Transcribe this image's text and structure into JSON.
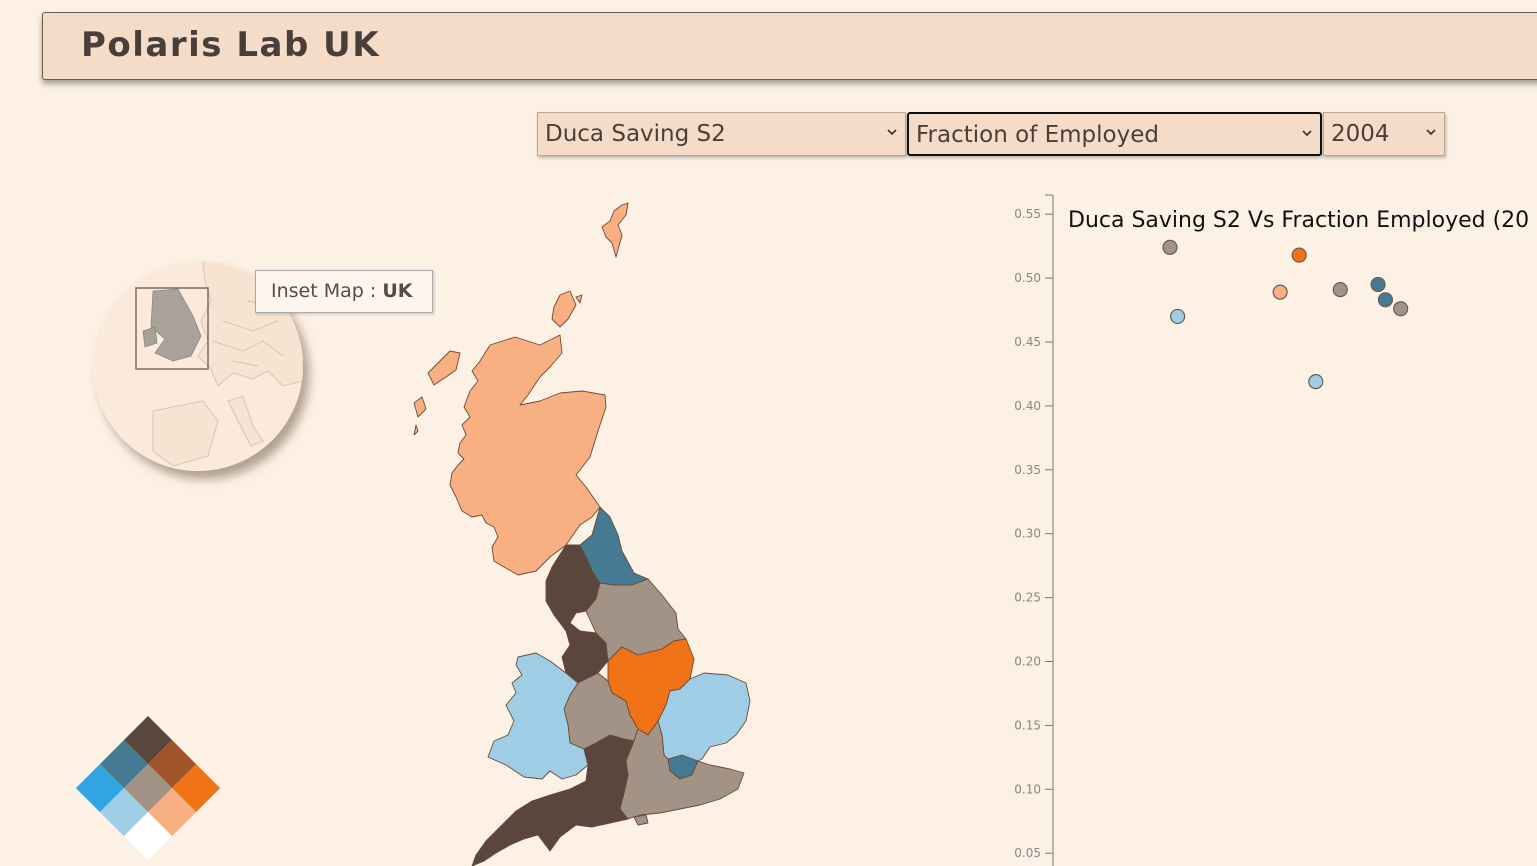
{
  "header": {
    "title": "Polaris Lab UK"
  },
  "controls": {
    "dataset": {
      "value": "Duca Saving S2"
    },
    "variable": {
      "value": "Fraction of Employed"
    },
    "year": {
      "value": "2004"
    }
  },
  "inset": {
    "label_prefix": "Inset Map : ",
    "label_region": "UK"
  },
  "colors": {
    "background": "#fdf1e5",
    "header_bg": "#f4dcc8",
    "dark_brown": "#5a463c",
    "steel_blue": "#457a93",
    "sienna": "#a0552b",
    "bright_blue": "#2fa6e2",
    "taupe": "#a39286",
    "orange": "#f07417",
    "light_blue": "#9fcde6",
    "peach": "#f8b083",
    "white": "#ffffff"
  },
  "map": {
    "regions": [
      {
        "name": "Scotland",
        "color": "#f8b083"
      },
      {
        "name": "North East",
        "color": "#457a93"
      },
      {
        "name": "North West",
        "color": "#5a463c"
      },
      {
        "name": "Yorkshire and the Humber",
        "color": "#a39286"
      },
      {
        "name": "East Midlands",
        "color": "#f07417"
      },
      {
        "name": "West Midlands",
        "color": "#a39286"
      },
      {
        "name": "Wales",
        "color": "#9fcde6"
      },
      {
        "name": "East of England",
        "color": "#9fcde6"
      },
      {
        "name": "London",
        "color": "#457a93"
      },
      {
        "name": "South East",
        "color": "#a39286"
      },
      {
        "name": "South West",
        "color": "#5a463c"
      },
      {
        "name": "Shetland",
        "color": "#f8b083"
      },
      {
        "name": "Orkney",
        "color": "#f8b083"
      }
    ]
  },
  "legend": {
    "cells": [
      "#5a463c",
      "#457a93",
      "#a0552b",
      "#2fa6e2",
      "#a39286",
      "#f07417",
      "#9fcde6",
      "#f8b083",
      "#ffffff"
    ]
  },
  "chart_data": {
    "type": "scatter",
    "title": "Duca Saving S2 Vs Fraction Employed (20",
    "ylim": [
      0.04,
      0.565
    ],
    "yticks": [
      "0.55",
      "0.50",
      "0.45",
      "0.40",
      "0.35",
      "0.30",
      "0.25",
      "0.20",
      "0.15",
      "0.10",
      "0.05"
    ],
    "ytick_values": [
      0.55,
      0.5,
      0.45,
      0.4,
      0.35,
      0.3,
      0.25,
      0.2,
      0.15,
      0.1,
      0.05
    ],
    "points": [
      {
        "x": 0.0,
        "y": 0.524,
        "color": "#a39286"
      },
      {
        "x": 0.028,
        "y": 0.47,
        "color": "#9fcde6"
      },
      {
        "x": 0.405,
        "y": 0.489,
        "color": "#f8b083"
      },
      {
        "x": 0.475,
        "y": 0.518,
        "color": "#f07417"
      },
      {
        "x": 0.536,
        "y": 0.419,
        "color": "#9fcde6"
      },
      {
        "x": 0.626,
        "y": 0.491,
        "color": "#a39286"
      },
      {
        "x": 0.765,
        "y": 0.495,
        "color": "#457a93"
      },
      {
        "x": 0.792,
        "y": 0.483,
        "color": "#457a93"
      },
      {
        "x": 0.848,
        "y": 0.476,
        "color": "#a39286"
      }
    ]
  }
}
